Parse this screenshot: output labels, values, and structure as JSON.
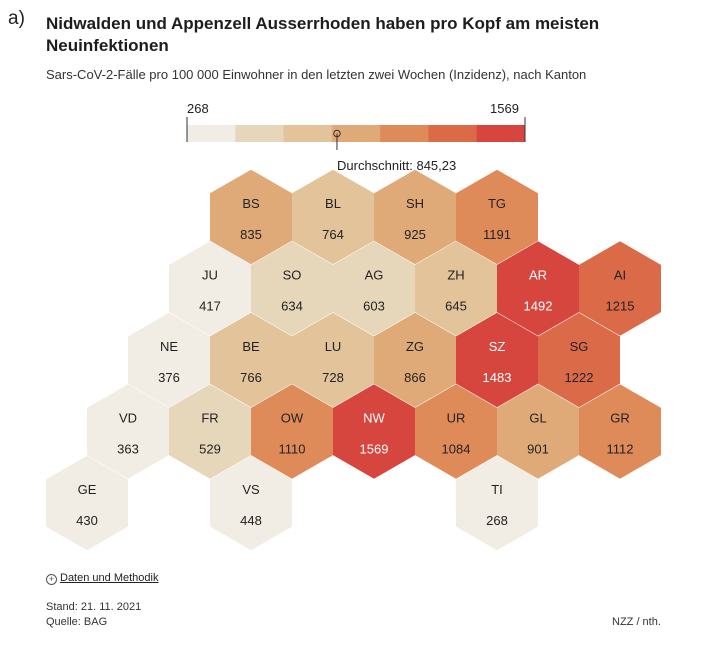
{
  "panel_label": "a)",
  "footer": {
    "link_icon": "plus-circle-icon",
    "link": "Daten und Methodik",
    "stand": "Stand: 21. 11. 2021",
    "source": "Quelle: BAG",
    "credit": "NZZ / nth."
  },
  "colors": {
    "scale": [
      "#f2ede4",
      "#e6d7bb",
      "#e2c39a",
      "#e0aa78",
      "#df8b59",
      "#db6b48",
      "#d6463f"
    ],
    "dark_text": "#222222",
    "light_text": "#ffffff"
  },
  "chart_data": {
    "type": "hexagon-map",
    "title": "Nidwalden und Appenzell Ausserrhoden haben pro Kopf am meisten Neuinfektionen",
    "subtitle": "Sars-CoV-2-Fälle pro 100 000 Einwohner in den letzten zwei Wochen (Inzidenz), nach Kanton",
    "legend": {
      "min": 268,
      "max": 1569,
      "average": 845.23,
      "average_label": "Durchschnitt: 845,23"
    },
    "cells": [
      {
        "canton": "BS",
        "value": 835,
        "row": 0,
        "col": 2
      },
      {
        "canton": "BL",
        "value": 764,
        "row": 0,
        "col": 3
      },
      {
        "canton": "SH",
        "value": 925,
        "row": 0,
        "col": 4
      },
      {
        "canton": "TG",
        "value": 1191,
        "row": 0,
        "col": 5
      },
      {
        "canton": "JU",
        "value": 417,
        "row": 1,
        "col": 1
      },
      {
        "canton": "SO",
        "value": 634,
        "row": 1,
        "col": 2
      },
      {
        "canton": "AG",
        "value": 603,
        "row": 1,
        "col": 3
      },
      {
        "canton": "ZH",
        "value": 645,
        "row": 1,
        "col": 4
      },
      {
        "canton": "AR",
        "value": 1492,
        "row": 1,
        "col": 5
      },
      {
        "canton": "AI",
        "value": 1215,
        "row": 1,
        "col": 6
      },
      {
        "canton": "NE",
        "value": 376,
        "row": 2,
        "col": 1
      },
      {
        "canton": "BE",
        "value": 766,
        "row": 2,
        "col": 2
      },
      {
        "canton": "LU",
        "value": 728,
        "row": 2,
        "col": 3
      },
      {
        "canton": "ZG",
        "value": 866,
        "row": 2,
        "col": 4
      },
      {
        "canton": "SZ",
        "value": 1483,
        "row": 2,
        "col": 5
      },
      {
        "canton": "SG",
        "value": 1222,
        "row": 2,
        "col": 6
      },
      {
        "canton": "VD",
        "value": 363,
        "row": 3,
        "col": 0
      },
      {
        "canton": "FR",
        "value": 529,
        "row": 3,
        "col": 1
      },
      {
        "canton": "OW",
        "value": 1110,
        "row": 3,
        "col": 2
      },
      {
        "canton": "NW",
        "value": 1569,
        "row": 3,
        "col": 3
      },
      {
        "canton": "UR",
        "value": 1084,
        "row": 3,
        "col": 4
      },
      {
        "canton": "GL",
        "value": 901,
        "row": 3,
        "col": 5
      },
      {
        "canton": "GR",
        "value": 1112,
        "row": 3,
        "col": 6
      },
      {
        "canton": "GE",
        "value": 430,
        "row": 4,
        "col": 0
      },
      {
        "canton": "VS",
        "value": 448,
        "row": 4,
        "col": 2
      },
      {
        "canton": "TI",
        "value": 268,
        "row": 4,
        "col": 5
      }
    ]
  }
}
